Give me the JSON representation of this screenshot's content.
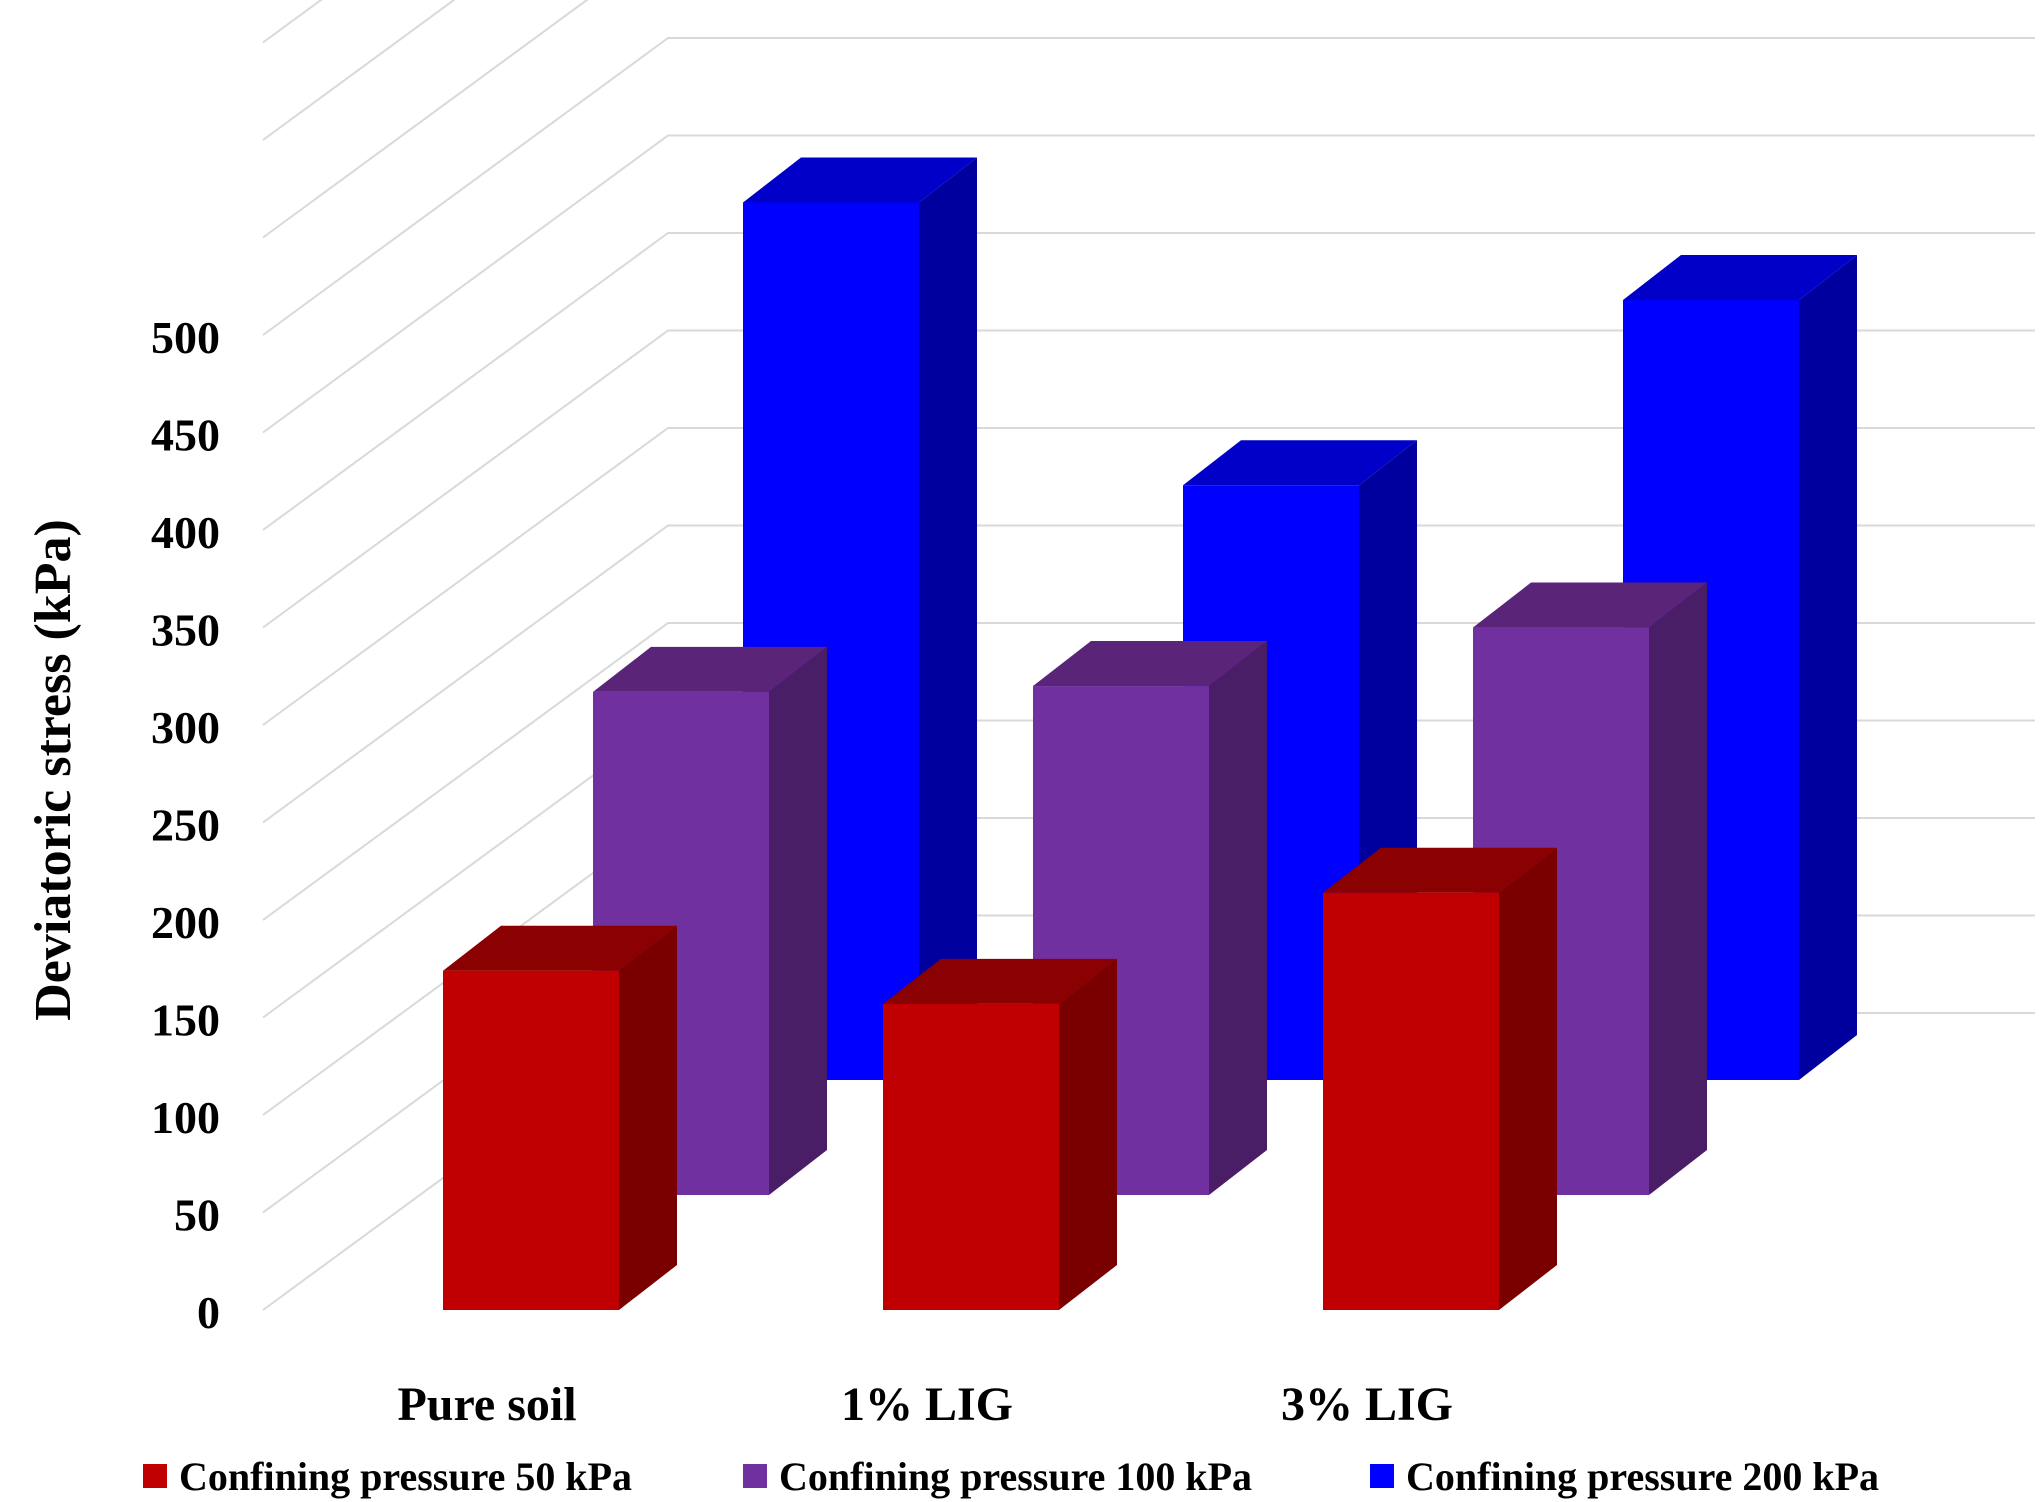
{
  "chart_data": {
    "type": "bar",
    "style": "3d-clustered-column",
    "title": "",
    "xlabel": "",
    "ylabel": "Deviatoric stress (kPa)",
    "ylim": [
      0,
      500
    ],
    "ytick_step": 50,
    "yticks": [
      "0",
      "50",
      "100",
      "150",
      "200",
      "250",
      "300",
      "350",
      "400",
      "450",
      "500"
    ],
    "grid": true,
    "legend_position": "bottom",
    "categories": [
      "Pure soil",
      "1% LIG",
      "3% LIG"
    ],
    "series": [
      {
        "name": "Confining pressure 50 kPa",
        "values": [
          174,
          157,
          214
        ],
        "color": "#c00000",
        "side_color": "#7a0000",
        "top_color": "#8b0000"
      },
      {
        "name": "Confining pressure 100 kPa",
        "values": [
          258,
          261,
          291
        ],
        "color": "#7030a0",
        "side_color": "#4a1e66",
        "top_color": "#5a2478"
      },
      {
        "name": "Confining pressure 200 kPa",
        "values": [
          450,
          305,
          400
        ],
        "color": "#0000ff",
        "side_color": "#00009e",
        "top_color": "#0000c8"
      }
    ]
  }
}
